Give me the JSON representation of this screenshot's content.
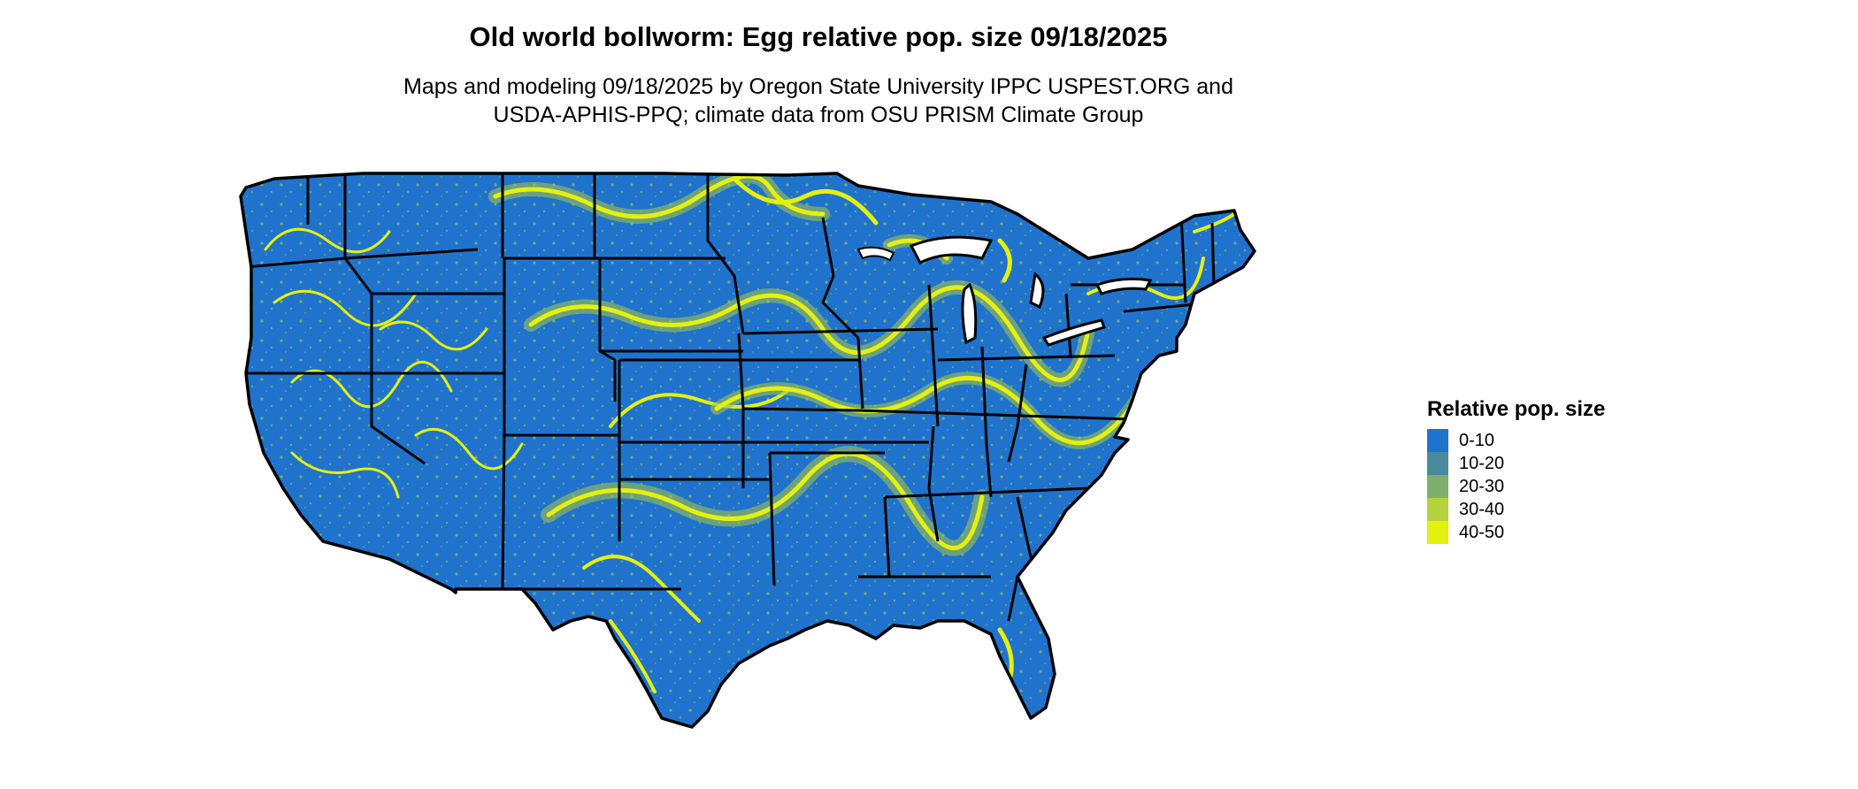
{
  "title": "Old world bollworm: Egg relative pop. size 09/18/2025",
  "subtitle_lines": [
    "Maps and modeling 09/18/2025 by Oregon State University IPPC USPEST.ORG and",
    "USDA-APHIS-PPQ; climate data from OSU PRISM Climate Group"
  ],
  "legend": {
    "title": "Relative pop. size",
    "items": [
      {
        "label": "0-10",
        "color": "#1f73cc"
      },
      {
        "label": "10-20",
        "color": "#4a8a9e"
      },
      {
        "label": "20-30",
        "color": "#7fae6e"
      },
      {
        "label": "30-40",
        "color": "#b6d13e"
      },
      {
        "label": "40-50",
        "color": "#e5f00f"
      }
    ]
  },
  "colors": {
    "land": "#1f73cc",
    "borders": "#000000",
    "hotspot": "#e5f00f",
    "hotspot_mid": "#9fc04c"
  }
}
